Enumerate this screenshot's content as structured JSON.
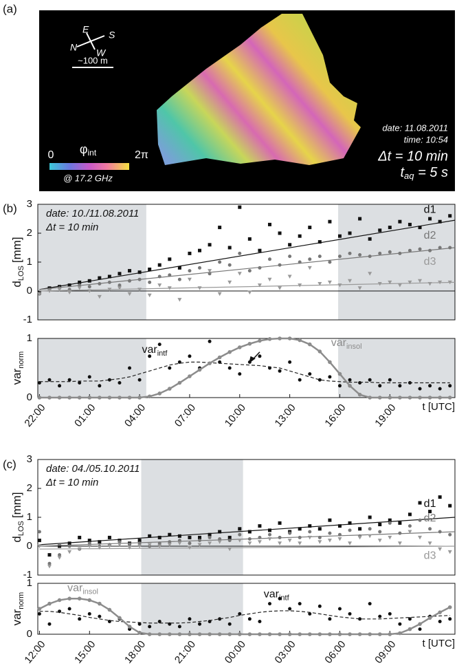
{
  "panel_labels": [
    "(a)",
    "(b)",
    "(c)"
  ],
  "panel_a": {
    "compass": [
      "S",
      "N",
      "E",
      "W"
    ],
    "scale_bar": "~100 m",
    "colorbar": {
      "min": "0",
      "symbol": "φ",
      "sub": "int",
      "max": "2π",
      "freq": "@ 17.2 GHz"
    },
    "info": {
      "date": "date: 11.08.2011",
      "time": "time: 10:54",
      "dt": "Δt = 10 min",
      "taq": "t",
      "taq_sub": "aq",
      "taq_rest": " = 5 s"
    }
  },
  "chart_data": [
    {
      "type": "scatter",
      "ylabel": {
        "main": "d",
        "sub": "LOS",
        "unit": "[mm]"
      },
      "annotations": [
        "date: 10./11.08.2011",
        "Δt = 10 min"
      ],
      "xlim": [
        -0.1,
        24.9
      ],
      "ylim": [
        -1,
        3
      ],
      "yticks": [
        -1,
        0,
        1,
        2,
        3
      ],
      "zero_line": true,
      "shaded": [
        [
          -0.1,
          6.4
        ],
        [
          17.9,
          24.9
        ]
      ],
      "trend_x": [
        0,
        24.9
      ],
      "x": [
        0,
        0.6,
        1.2,
        1.8,
        2.4,
        3,
        3.6,
        4.2,
        4.8,
        5.4,
        6,
        6.6,
        7.2,
        7.8,
        8.4,
        9,
        9.6,
        10.2,
        10.8,
        11.4,
        12,
        12.6,
        13.2,
        13.8,
        14.4,
        15,
        15.6,
        16.2,
        16.8,
        17.4,
        18,
        18.6,
        19.2,
        19.8,
        20.4,
        21,
        21.6,
        22.2,
        22.8,
        23.4,
        24,
        24.6
      ],
      "series": [
        {
          "name": "d1",
          "color": "#111111",
          "marker": "square",
          "trend": [
            0.05,
            2.45
          ],
          "values": [
            -0.05,
            0.1,
            0.15,
            0.2,
            0.3,
            0.35,
            0.45,
            0.5,
            0.6,
            0.7,
            0.65,
            0.75,
            0.9,
            1.1,
            0.8,
            1.3,
            1.4,
            1.6,
            2.2,
            1.5,
            2.9,
            1.8,
            1.4,
            2.3,
            2.0,
            1.6,
            1.9,
            2.2,
            1.7,
            2.4,
            1.9,
            2.0,
            2.5,
            1.8,
            2.1,
            2.2,
            2.4,
            2.3,
            2.2,
            2.5,
            2.4,
            2.6
          ]
        },
        {
          "name": "d2",
          "color": "#777777",
          "marker": "circle",
          "trend": [
            0.05,
            1.5
          ],
          "values": [
            -0.1,
            0.05,
            0.1,
            0.05,
            0.2,
            0.15,
            0.25,
            0.3,
            0.2,
            0.35,
            0.4,
            0.3,
            0.5,
            0.55,
            0.4,
            0.7,
            0.8,
            0.6,
            1.0,
            0.9,
            1.3,
            0.7,
            0.8,
            1.1,
            0.9,
            1.2,
            1.0,
            1.1,
            1.2,
            1.0,
            1.2,
            1.3,
            1.25,
            1.2,
            1.3,
            1.35,
            1.3,
            1.4,
            1.45,
            1.4,
            1.5,
            1.5
          ]
        },
        {
          "name": "d3",
          "color": "#999999",
          "marker": "triangle",
          "trend": [
            0,
            0.3
          ],
          "values": [
            -0.1,
            0,
            0.05,
            -0.05,
            0.1,
            0,
            -0.2,
            0.05,
            0.1,
            -0.1,
            0.05,
            -0.15,
            0.2,
            0.1,
            -0.3,
            0.4,
            0.1,
            0.7,
            -0.1,
            0.3,
            0.6,
            -0.05,
            0.2,
            0.4,
            0.1,
            0.5,
            0.2,
            0.8,
            0.25,
            0.3,
            0.2,
            0.35,
            0.1,
            0.6,
            0.25,
            0.3,
            0.2,
            0.3,
            0.35,
            0.25,
            0.3,
            0.3
          ]
        }
      ]
    },
    {
      "type": "scatter",
      "ylabel": {
        "main": "var",
        "sub": "norm"
      },
      "xlabel": "t [UTC]",
      "xlim": [
        -0.1,
        24.9
      ],
      "ylim": [
        0,
        1
      ],
      "yticks": [
        0,
        1
      ],
      "xticks": [
        {
          "value": 0,
          "label": "22:00"
        },
        {
          "value": 3,
          "label": "01:00"
        },
        {
          "value": 6,
          "label": "04:00"
        },
        {
          "value": 9,
          "label": "07:00"
        },
        {
          "value": 12,
          "label": "10:00"
        },
        {
          "value": 15,
          "label": "13:00"
        },
        {
          "value": 18,
          "label": "16:00"
        },
        {
          "value": 21,
          "label": "19:00"
        }
      ],
      "shaded": [
        [
          -0.1,
          6.4
        ],
        [
          17.9,
          24.9
        ]
      ],
      "x": [
        0,
        0.6,
        1.2,
        1.8,
        2.4,
        3,
        3.6,
        4.2,
        4.8,
        5.4,
        6,
        6.6,
        7.2,
        7.8,
        8.4,
        9,
        9.6,
        10.2,
        10.8,
        11.4,
        12,
        12.6,
        13.2,
        13.8,
        14.4,
        15,
        15.6,
        16.2,
        16.8,
        17.4,
        18,
        18.6,
        19.2,
        19.8,
        20.4,
        21,
        21.6,
        22.2,
        22.8,
        23.4,
        24,
        24.6
      ],
      "series": [
        {
          "name": "var",
          "sub": "intf",
          "color": "#111111",
          "style": "markers",
          "values": [
            0.25,
            0.3,
            0.2,
            0.3,
            0.25,
            0.35,
            0.2,
            0.3,
            0.25,
            0.5,
            0.3,
            0.7,
            0.9,
            0.5,
            0.6,
            0.7,
            0.5,
            0.95,
            0.6,
            0.5,
            0.4,
            0.6,
            0.7,
            0.5,
            0.45,
            0.6,
            0.3,
            0.4,
            0.3,
            0.35,
            0.2,
            0.3,
            0.25,
            0.3,
            0.2,
            0.3,
            0.2,
            0.25,
            0.15,
            0.2,
            0.15,
            0.2
          ]
        },
        {
          "color": "#222222",
          "style": "dashed",
          "values": [
            0.27,
            0.27,
            0.27,
            0.27,
            0.28,
            0.28,
            0.28,
            0.3,
            0.32,
            0.35,
            0.4,
            0.45,
            0.5,
            0.55,
            0.58,
            0.6,
            0.6,
            0.59,
            0.58,
            0.57,
            0.56,
            0.55,
            0.54,
            0.52,
            0.5,
            0.45,
            0.4,
            0.35,
            0.3,
            0.28,
            0.27,
            0.26,
            0.26,
            0.26,
            0.25,
            0.25,
            0.25,
            0.25,
            0.25,
            0.25,
            0.25,
            0.25
          ]
        },
        {
          "name": "var",
          "sub": "insol",
          "color": "#8c8c8c",
          "style": "line-markers",
          "values": [
            0,
            0,
            0,
            0,
            0,
            0,
            0,
            0,
            0,
            0,
            0,
            0.02,
            0.07,
            0.15,
            0.25,
            0.36,
            0.47,
            0.58,
            0.68,
            0.77,
            0.85,
            0.91,
            0.96,
            0.99,
            1.0,
            1.0,
            0.97,
            0.9,
            0.78,
            0.6,
            0.4,
            0.2,
            0.05,
            0,
            0,
            0,
            0,
            0,
            0,
            0,
            0,
            0
          ]
        }
      ]
    },
    {
      "type": "scatter",
      "ylabel": {
        "main": "d",
        "sub": "LOS",
        "unit": "[mm]"
      },
      "annotations": [
        "date: 04./05.10.2011",
        "Δt = 10 min"
      ],
      "xlim": [
        -0.1,
        24.9
      ],
      "ylim": [
        -1,
        3
      ],
      "yticks": [
        -1,
        0,
        1,
        2,
        3
      ],
      "zero_line": true,
      "shaded": [
        [
          6.1,
          12.2
        ]
      ],
      "trend_x": [
        0,
        24.9
      ],
      "x": [
        0,
        0.6,
        1.2,
        1.8,
        2.4,
        3,
        3.6,
        4.2,
        4.8,
        5.4,
        6,
        6.6,
        7.2,
        7.8,
        8.4,
        9,
        9.6,
        10.2,
        10.8,
        11.4,
        12,
        12.6,
        13.2,
        13.8,
        14.4,
        15,
        15.6,
        16.2,
        16.8,
        17.4,
        18,
        18.6,
        19.2,
        19.8,
        20.4,
        21,
        21.6,
        22.2,
        22.8,
        23.4,
        24,
        24.6
      ],
      "series": [
        {
          "name": "d1",
          "color": "#111111",
          "marker": "square",
          "trend": [
            0.05,
            1.0
          ],
          "values": [
            0.2,
            -0.3,
            0,
            0.1,
            0.3,
            0.2,
            0.15,
            0.3,
            0.2,
            0.1,
            0.2,
            0.35,
            0.3,
            0.4,
            0.35,
            0.3,
            0.3,
            0.4,
            0.5,
            0.3,
            0.6,
            0.5,
            0.7,
            0.55,
            0.8,
            0.5,
            0.6,
            0.7,
            0.6,
            0.9,
            0.7,
            0.8,
            0.6,
            1.0,
            0.75,
            0.9,
            0.8,
            1.1,
            1.5,
            1.2,
            1.7,
            1.4
          ]
        },
        {
          "name": "d2",
          "color": "#777777",
          "marker": "circle",
          "trend": [
            0,
            0.5
          ],
          "values": [
            0.5,
            -0.6,
            -0.3,
            0,
            -0.1,
            0.1,
            0,
            0.05,
            0.15,
            0.05,
            0.1,
            0,
            0.1,
            0.15,
            0.2,
            0.1,
            0.2,
            0.3,
            0.25,
            0.2,
            0.4,
            0.25,
            0.3,
            0.4,
            0.3,
            0.45,
            0.3,
            0.5,
            0.3,
            0.45,
            0.4,
            0.55,
            0.35,
            0.6,
            0.5,
            0.8,
            0.45,
            0.7,
            0.9,
            0.6,
            0.5,
            0.4
          ]
        },
        {
          "name": "d3",
          "color": "#999999",
          "marker": "triangle",
          "trend": [
            -0.1,
            0
          ],
          "values": [
            0,
            -0.7,
            -0.4,
            -0.2,
            -0.1,
            0,
            -0.05,
            0,
            0.05,
            -0.05,
            0,
            0.05,
            0,
            0.05,
            0.1,
            -0.05,
            0.05,
            0.1,
            0.15,
            -0.1,
            0.2,
            0.1,
            0.15,
            0.25,
            0.1,
            0.2,
            0.1,
            0.3,
            0.15,
            0.2,
            0.25,
            0.1,
            0.3,
            0.35,
            0.2,
            0.3,
            0.1,
            0.5,
            0.3,
            0.1,
            -0.1,
            -0.2
          ]
        }
      ]
    },
    {
      "type": "scatter",
      "ylabel": {
        "main": "var",
        "sub": "norm"
      },
      "xlabel": "t [UTC]",
      "xlim": [
        -0.1,
        24.9
      ],
      "ylim": [
        0,
        1
      ],
      "yticks": [
        0,
        1
      ],
      "xticks": [
        {
          "value": 0,
          "label": "12:00"
        },
        {
          "value": 3,
          "label": "15:00"
        },
        {
          "value": 6,
          "label": "18:00"
        },
        {
          "value": 9,
          "label": "21:00"
        },
        {
          "value": 12,
          "label": "00:00"
        },
        {
          "value": 15,
          "label": "03:00"
        },
        {
          "value": 18,
          "label": "06:00"
        },
        {
          "value": 21,
          "label": "09:00"
        }
      ],
      "shaded": [
        [
          6.1,
          12.2
        ]
      ],
      "x": [
        0,
        0.6,
        1.2,
        1.8,
        2.4,
        3,
        3.6,
        4.2,
        4.8,
        5.4,
        6,
        6.6,
        7.2,
        7.8,
        8.4,
        9,
        9.6,
        10.2,
        10.8,
        11.4,
        12,
        12.6,
        13.2,
        13.8,
        14.4,
        15,
        15.6,
        16.2,
        16.8,
        17.4,
        18,
        18.6,
        19.2,
        19.8,
        20.4,
        21,
        21.6,
        22.2,
        22.8,
        23.4,
        24,
        24.6
      ],
      "series": [
        {
          "name": "var",
          "sub": "intf",
          "color": "#111111",
          "style": "markers",
          "values": [
            0.4,
            0.2,
            0.45,
            0.5,
            0.3,
            0.4,
            0.35,
            0.25,
            0.3,
            0.1,
            0.2,
            0.15,
            0.25,
            0.2,
            0.15,
            0.3,
            0.2,
            0.25,
            0.3,
            0.2,
            0.4,
            0.3,
            0.25,
            0.6,
            0.7,
            0.5,
            0.6,
            0.4,
            0.55,
            0.3,
            0.5,
            0.4,
            0.3,
            0.6,
            0.35,
            0.4,
            0.2,
            0.3,
            0.1,
            0.35,
            0.25,
            0.3
          ]
        },
        {
          "color": "#222222",
          "style": "dashed",
          "values": [
            0.45,
            0.45,
            0.43,
            0.4,
            0.37,
            0.33,
            0.3,
            0.27,
            0.25,
            0.24,
            0.23,
            0.22,
            0.22,
            0.22,
            0.22,
            0.23,
            0.25,
            0.27,
            0.3,
            0.33,
            0.37,
            0.4,
            0.43,
            0.45,
            0.46,
            0.46,
            0.45,
            0.43,
            0.4,
            0.37,
            0.34,
            0.32,
            0.3,
            0.3,
            0.3,
            0.31,
            0.32,
            0.33,
            0.34,
            0.35,
            0.36,
            0.37
          ]
        },
        {
          "name": "var",
          "sub": "insol",
          "color": "#8c8c8c",
          "style": "line-markers",
          "values": [
            0.5,
            0.6,
            0.67,
            0.7,
            0.7,
            0.67,
            0.6,
            0.48,
            0.32,
            0.15,
            0.03,
            0,
            0,
            0,
            0,
            0,
            0,
            0,
            0,
            0,
            0,
            0,
            0,
            0,
            0,
            0,
            0,
            0,
            0,
            0,
            0,
            0,
            0,
            0,
            0,
            0,
            0.02,
            0.1,
            0.2,
            0.32,
            0.43,
            0.53
          ]
        }
      ]
    }
  ]
}
